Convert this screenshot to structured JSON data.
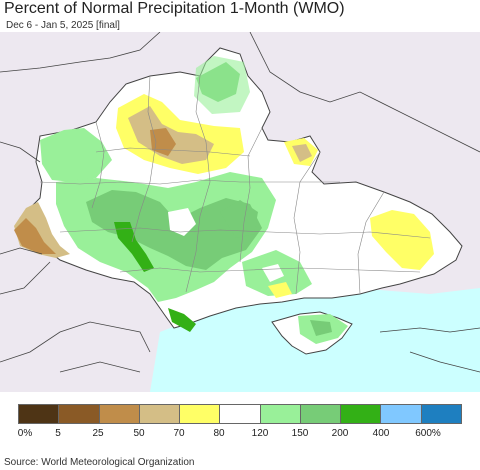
{
  "header": {
    "title": "Percent of Normal Precipitation 1-Month (WMO)",
    "subtitle": "Dec 6 - Jan 5, 2025 [final]"
  },
  "legend": {
    "colors": [
      "#4e3415",
      "#8a5a26",
      "#c08d4a",
      "#d4be86",
      "#ffff66",
      "#ffffff",
      "#99f099",
      "#77cc77",
      "#33b016",
      "#80c8ff",
      "#1e7fc0"
    ],
    "ticks": [
      "0%",
      "5",
      "25",
      "50",
      "70",
      "80",
      "120",
      "150",
      "200",
      "400",
      "600%"
    ]
  },
  "footer": {
    "source": "Source: World Meteorological Organization"
  },
  "palette": {
    "sea": "#ccffff",
    "outside": "#ede8f0",
    "border": "#444444"
  }
}
